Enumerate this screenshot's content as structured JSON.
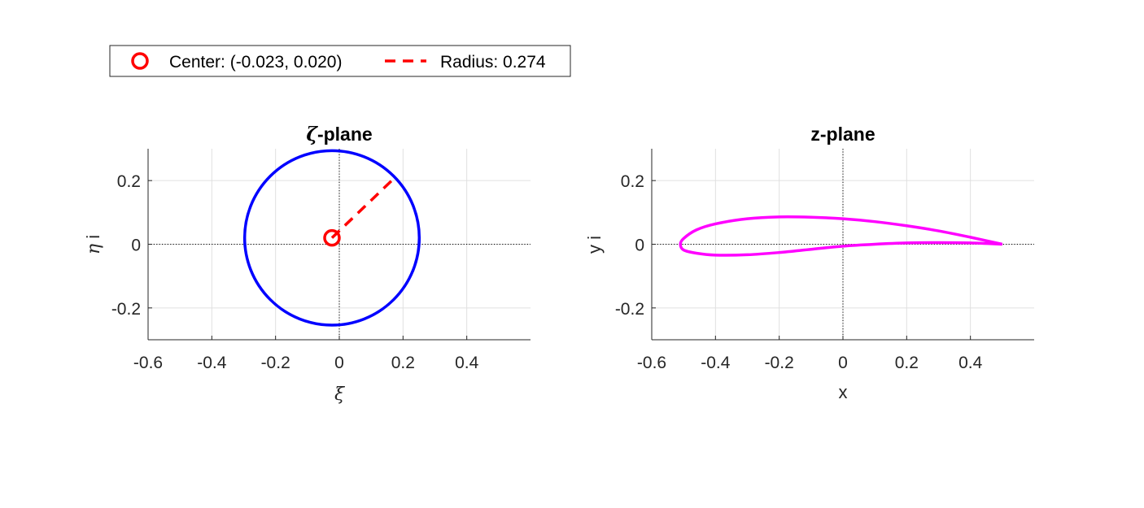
{
  "legend": {
    "center_label": "Center: (-0.023, 0.020)",
    "radius_label": "Radius: 0.274",
    "placement": "top-left"
  },
  "colors": {
    "circle": "#0000ff",
    "airfoil": "#ff00ff",
    "center_marker": "#ff0000",
    "radius_line": "#ff0000",
    "grid": "#e0e0e0",
    "axes": "#262626"
  },
  "chart_data": [
    {
      "type": "line",
      "title_symbol": "ζ",
      "title_rest": "-plane",
      "xlabel": "ξ",
      "ylabel_symbol": "η",
      "ylabel_rest": " i",
      "xlim": [
        -0.6,
        0.6
      ],
      "ylim": [
        -0.3,
        0.3
      ],
      "xticks": [
        -0.6,
        -0.4,
        -0.2,
        0,
        0.2,
        0.4
      ],
      "xtick_labels": [
        "-0.6",
        "-0.4",
        "-0.2",
        "0",
        "0.2",
        "0.4"
      ],
      "yticks": [
        -0.2,
        0,
        0.2
      ],
      "ytick_labels": [
        "-0.2",
        "0",
        "0.2"
      ],
      "grid": true,
      "center": [
        -0.023,
        0.02
      ],
      "radius": 0.274,
      "radius_line_end": [
        0.175,
        0.21
      ],
      "series": [
        {
          "kind": "circle",
          "color": "#0000ff"
        }
      ]
    },
    {
      "type": "line",
      "title": "z-plane",
      "xlabel": "x",
      "ylabel": "y i",
      "xlim": [
        -0.6,
        0.6
      ],
      "ylim": [
        -0.3,
        0.3
      ],
      "xticks": [
        -0.6,
        -0.4,
        -0.2,
        0,
        0.2,
        0.4
      ],
      "xtick_labels": [
        "-0.6",
        "-0.4",
        "-0.2",
        "0",
        "0.2",
        "0.4"
      ],
      "yticks": [
        -0.2,
        0,
        0.2
      ],
      "ytick_labels": [
        "-0.2",
        "0",
        "0.2"
      ],
      "grid": true,
      "airfoil": {
        "color": "#ff00ff",
        "upper": [
          [
            0.5,
            0.0
          ],
          [
            0.4,
            0.022
          ],
          [
            0.3,
            0.042
          ],
          [
            0.2,
            0.058
          ],
          [
            0.1,
            0.071
          ],
          [
            0.0,
            0.08
          ],
          [
            -0.1,
            0.085
          ],
          [
            -0.2,
            0.086
          ],
          [
            -0.3,
            0.08
          ],
          [
            -0.4,
            0.064
          ],
          [
            -0.46,
            0.045
          ],
          [
            -0.5,
            0.018
          ],
          [
            -0.51,
            0.0
          ]
        ],
        "lower": [
          [
            -0.51,
            0.0
          ],
          [
            -0.5,
            -0.018
          ],
          [
            -0.46,
            -0.028
          ],
          [
            -0.4,
            -0.034
          ],
          [
            -0.3,
            -0.033
          ],
          [
            -0.2,
            -0.026
          ],
          [
            -0.1,
            -0.016
          ],
          [
            0.0,
            -0.006
          ],
          [
            0.1,
            0.0
          ],
          [
            0.2,
            0.004
          ],
          [
            0.3,
            0.005
          ],
          [
            0.4,
            0.004
          ],
          [
            0.5,
            0.0
          ]
        ]
      }
    }
  ]
}
